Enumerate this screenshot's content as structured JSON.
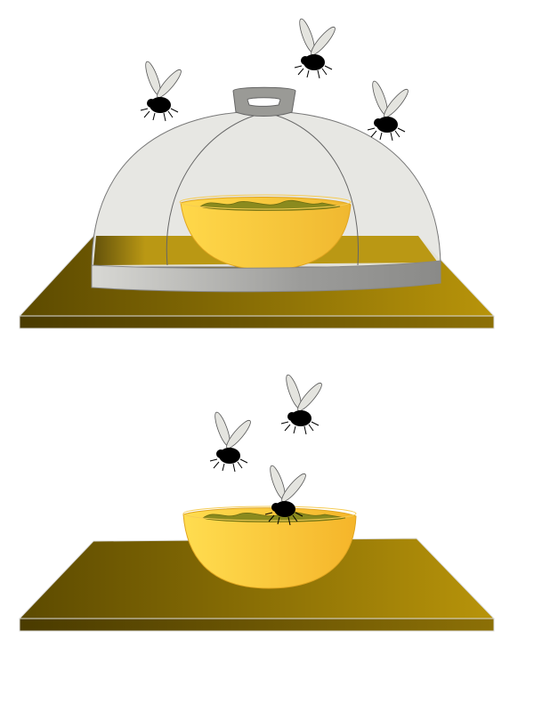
{
  "panels": [
    {
      "name": "covered",
      "has_cover": true,
      "fly_count": 3
    },
    {
      "name": "uncovered",
      "has_cover": false,
      "fly_count": 3
    }
  ],
  "colors": {
    "table_dark": "#5c4a00",
    "table_light": "#b8940a",
    "bowl_light": "#ffd84a",
    "bowl_dark": "#f0b830",
    "food": "#8a8a1e",
    "cover_glass": "#e6e6e2",
    "cover_rim": "#a8a8a8",
    "handle": "#9a9a96",
    "fly_body": "#000000",
    "fly_wing": "#e4e4df"
  },
  "icons": [
    "fly-icon",
    "bowl-icon",
    "food-cover-icon",
    "table-icon"
  ]
}
